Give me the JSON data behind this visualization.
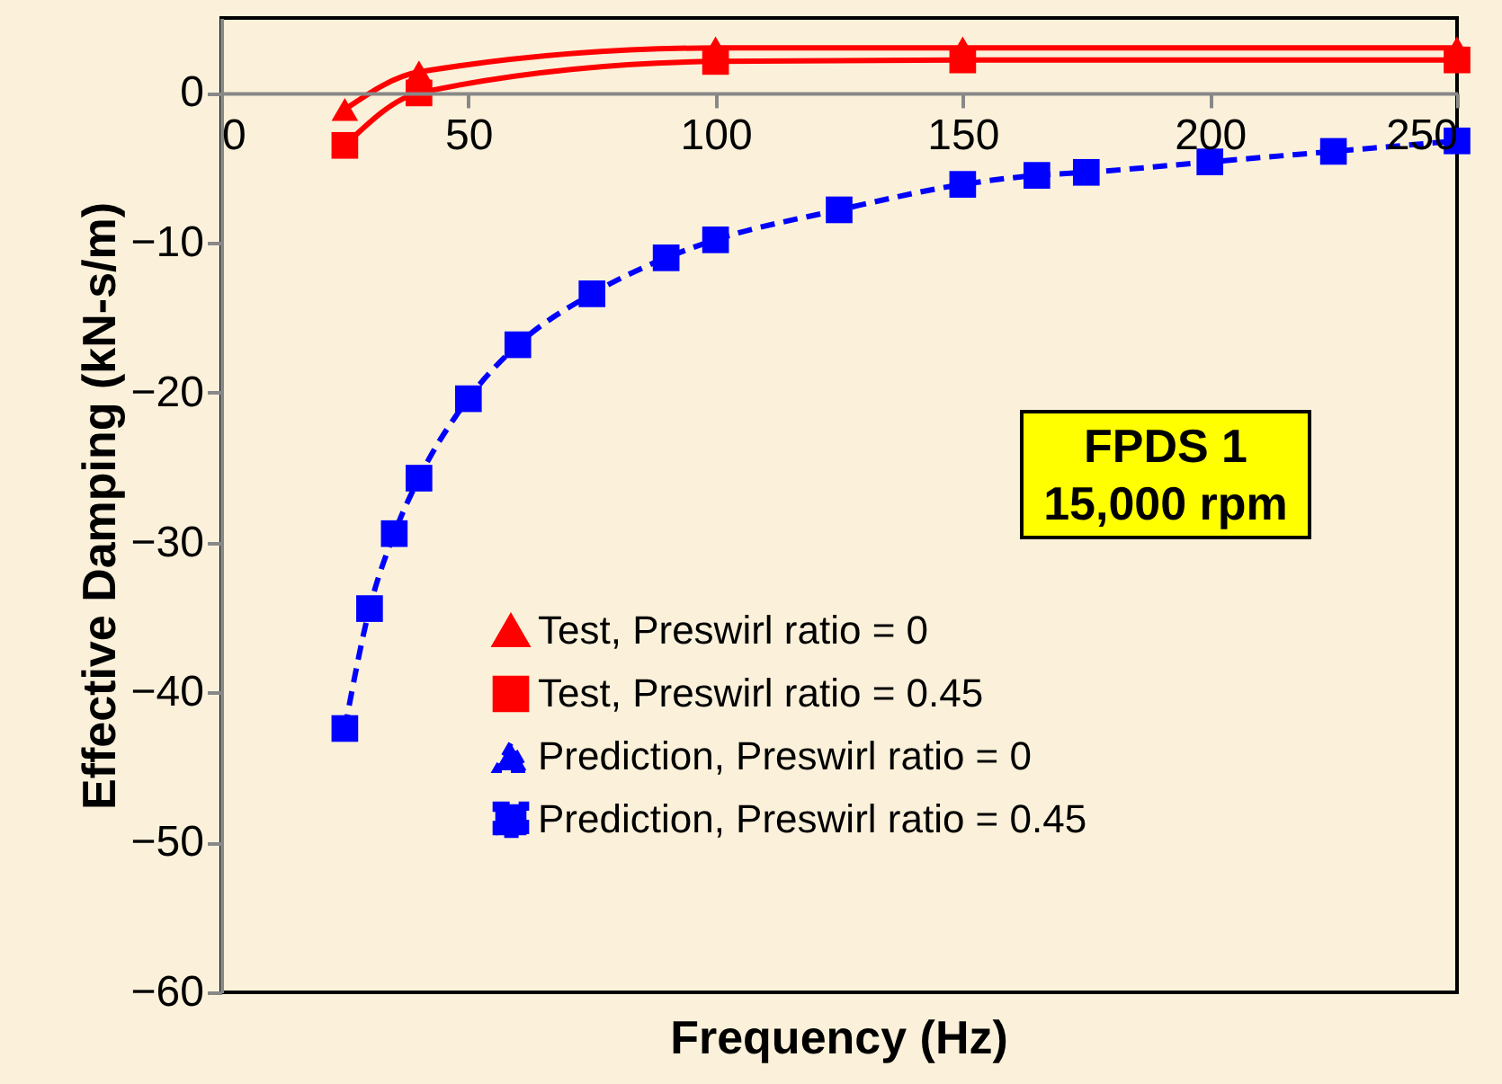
{
  "chart_data": {
    "type": "line",
    "xlabel": "Frequency (Hz)",
    "ylabel": "Effective Damping (kN-s/m)",
    "annotations": [
      "FPDS 1",
      "15,000 rpm"
    ],
    "xlim": [
      0,
      250
    ],
    "xticks": [
      0,
      50,
      100,
      150,
      200,
      250
    ],
    "ylim": [
      -60,
      5
    ],
    "yticks": [
      -60,
      -50,
      -40,
      -30,
      -20,
      -10,
      0
    ],
    "grid": false,
    "legend": "bottom right",
    "series": [
      {
        "name": "Test, Preswirl ratio = 0",
        "color": "#ff0000",
        "marker": "triangle",
        "line_style": "solid",
        "x": [
          25,
          40,
          100,
          150,
          250
        ],
        "values": [
          -1.1,
          1.4,
          3.0,
          3.0,
          3.0
        ]
      },
      {
        "name": "Test, Preswirl ratio = 0.45",
        "color": "#ff0000",
        "marker": "square",
        "line_style": "solid",
        "x": [
          25,
          40,
          100,
          150,
          250
        ],
        "values": [
          -3.5,
          0.0,
          2.1,
          2.2,
          2.2
        ]
      },
      {
        "name": "Prediction, Preswirl ratio = 0",
        "color": "#0000ff",
        "marker": "triangle",
        "line_style": "dashed"
      },
      {
        "name": "Prediction, Preswirl ratio = 0.45",
        "color": "#0000ff",
        "marker": "square",
        "line_style": "dashed",
        "x": [
          25,
          30,
          35,
          40,
          50,
          60,
          75,
          90,
          100,
          125,
          150,
          165,
          175,
          200,
          225,
          250
        ],
        "values": [
          -42.4,
          -34.4,
          -29.4,
          -25.7,
          -20.4,
          -16.8,
          -13.4,
          -11.0,
          -9.8,
          -7.8,
          -6.1,
          -5.5,
          -5.3,
          -4.6,
          -3.9,
          -3.2
        ]
      }
    ]
  }
}
